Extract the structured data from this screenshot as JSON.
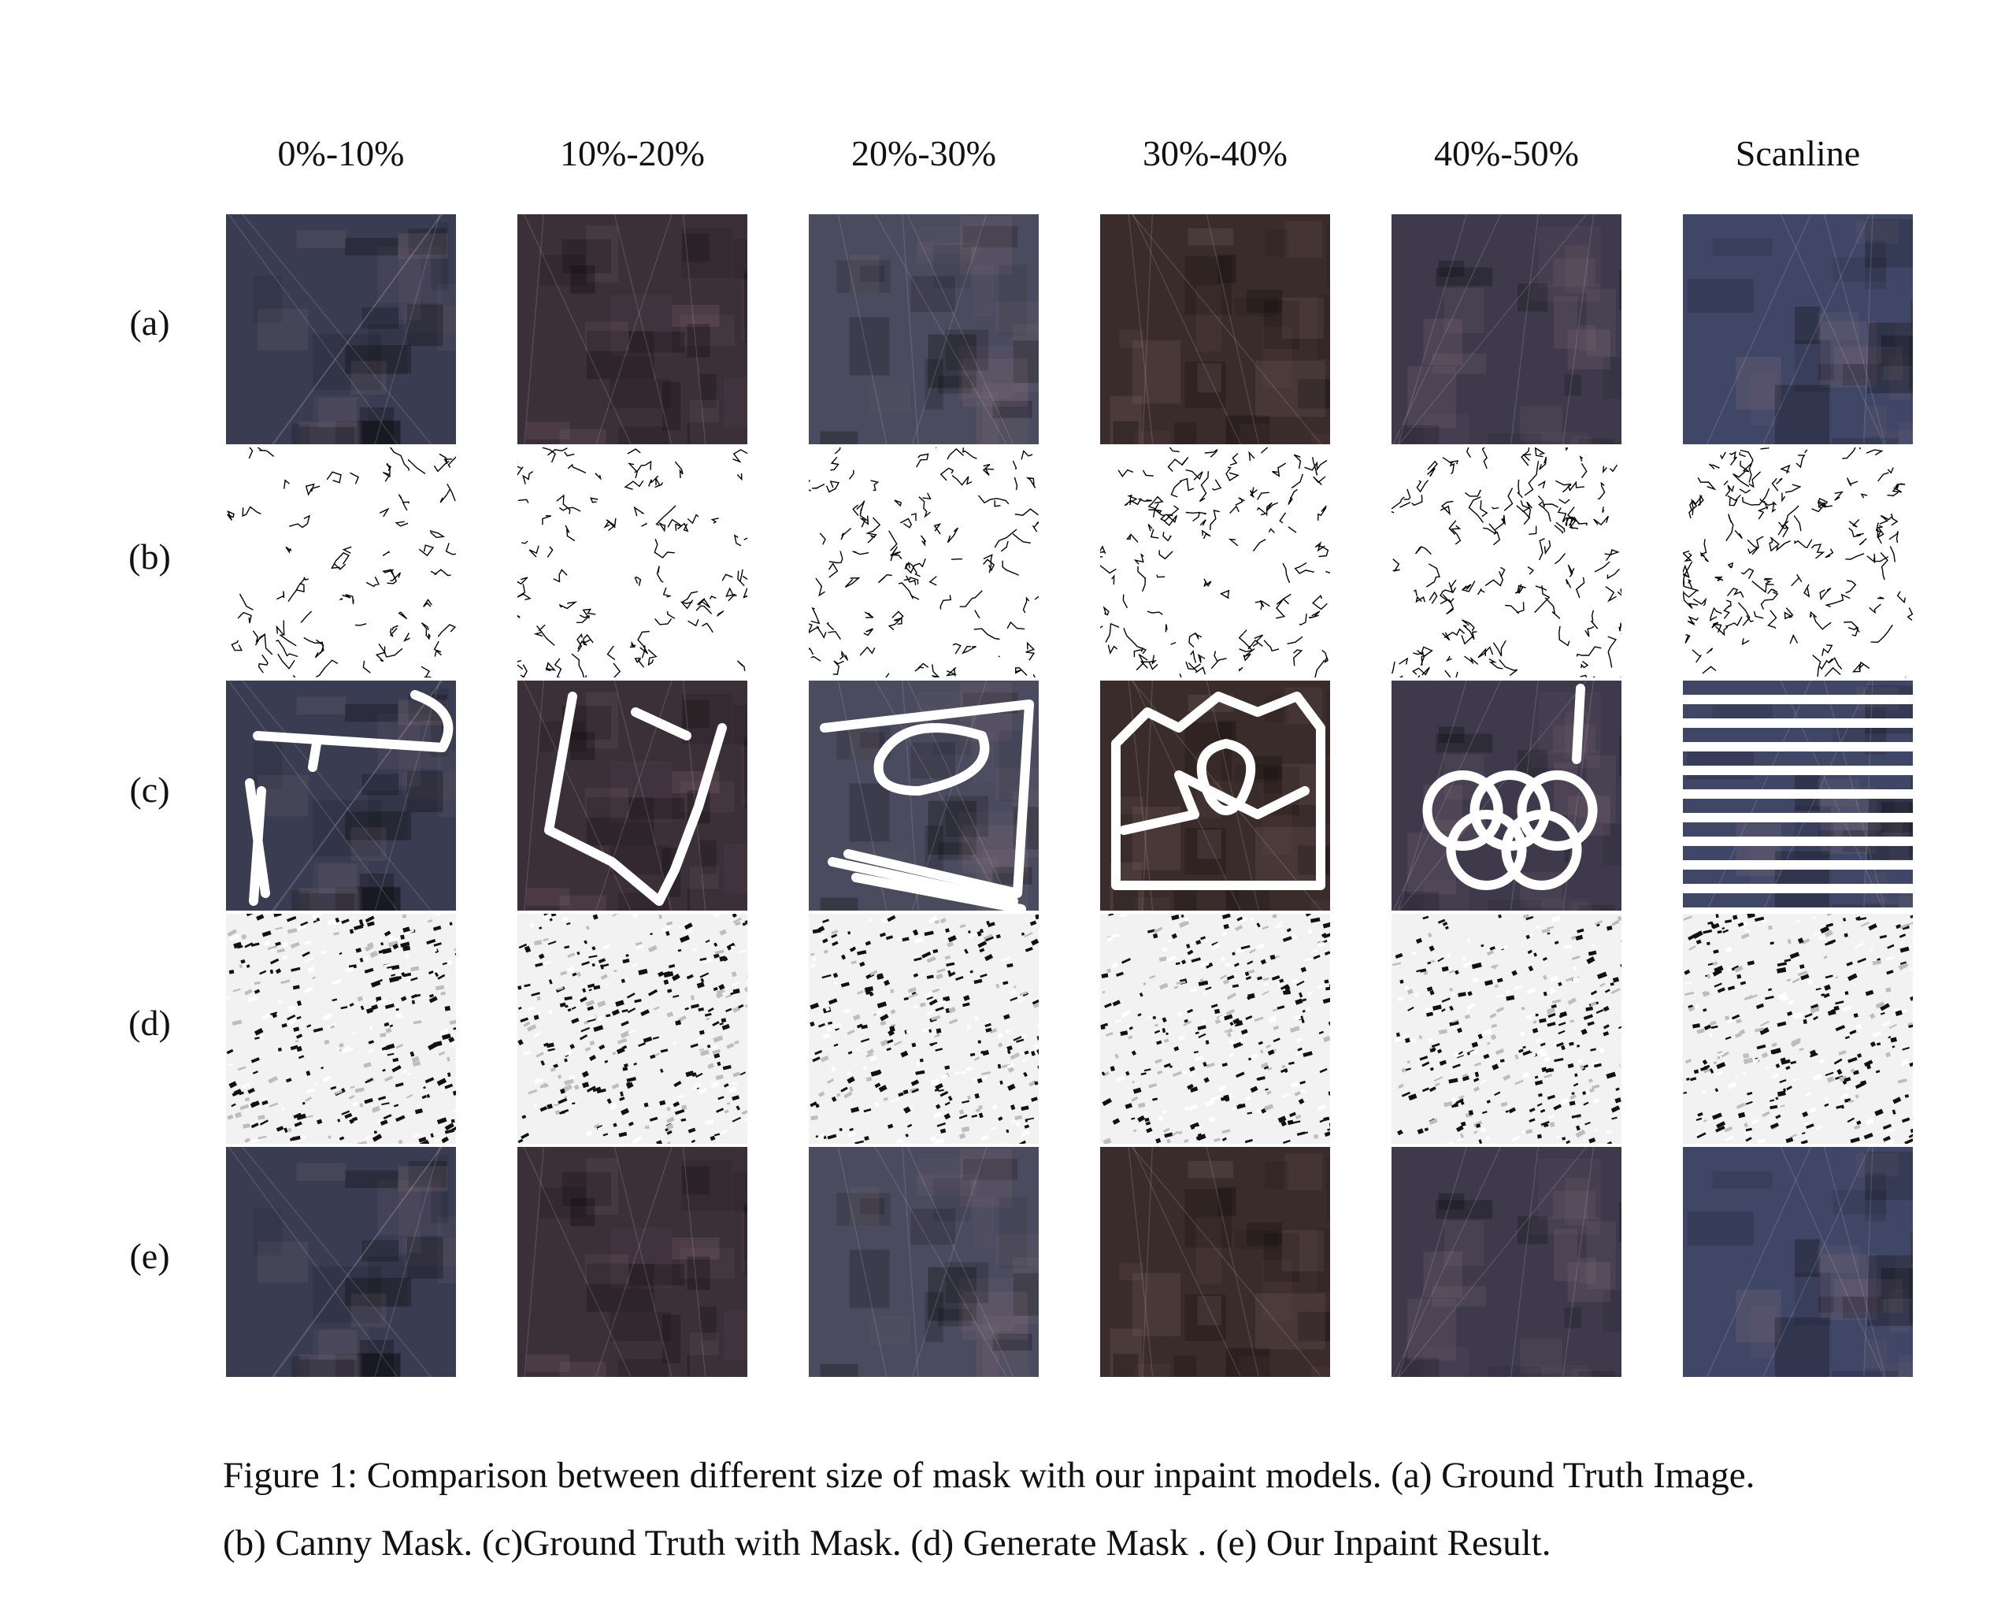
{
  "columns": [
    "0%-10%",
    "10%-20%",
    "20%-30%",
    "30%-40%",
    "40%-50%",
    "Scanline"
  ],
  "rows": [
    "(a)",
    "(b)",
    "(c)",
    "(d)",
    "(e)"
  ],
  "row_meaning": {
    "a": "Ground Truth Image",
    "b": "Canny Mask",
    "c": "Ground Truth with Mask",
    "d": "Generate Mask",
    "e": "Our Inpaint Result"
  },
  "tile_colors": [
    "#3a3d52",
    "#3b2f38",
    "#4a4b5e",
    "#3a2c2a",
    "#3e3a4c",
    "#404766"
  ],
  "caption": {
    "line1": "Figure 1: Comparison between different size of mask with our inpaint models. (a) Ground Truth Image.",
    "line2": "(b) Canny Mask. (c)Ground Truth with Mask. (d) Generate Mask . (e) Our Inpaint Result."
  }
}
